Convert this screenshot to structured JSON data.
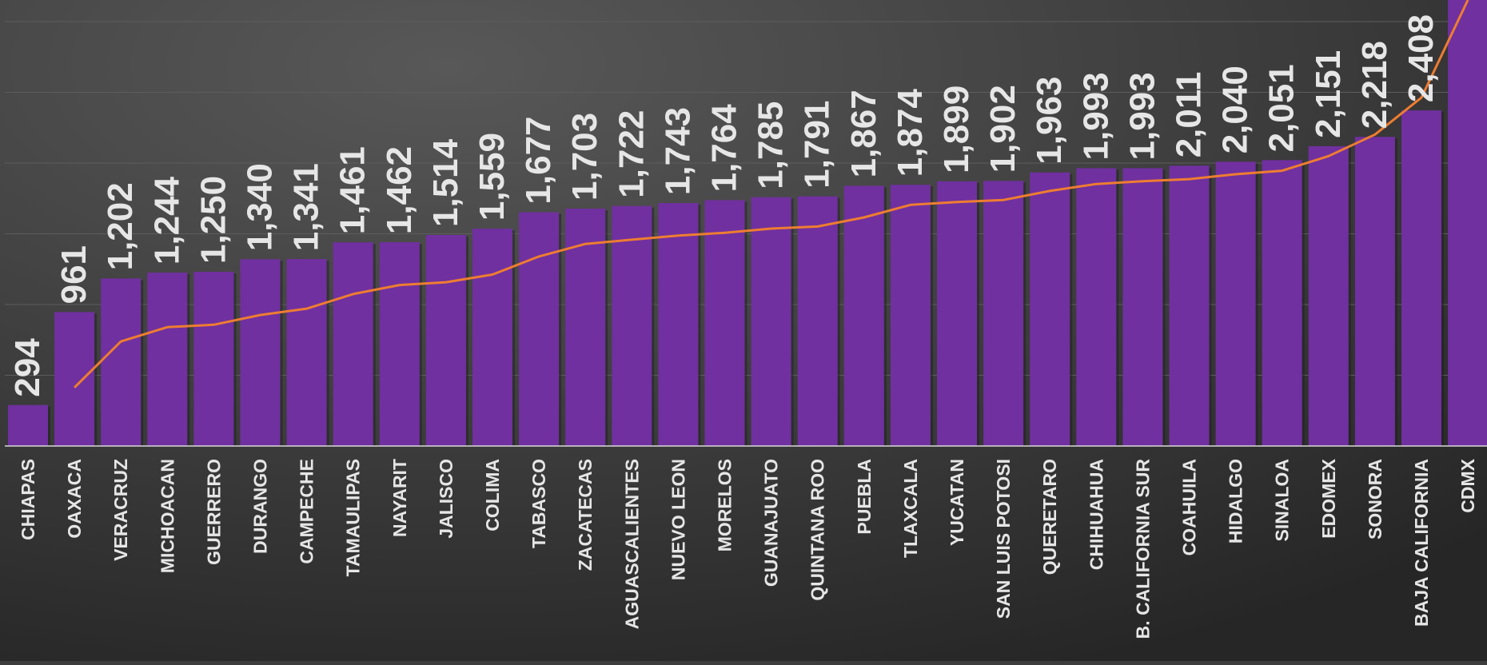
{
  "chart_data": {
    "type": "bar",
    "categories": [
      "CHIAPAS",
      "OAXACA",
      "VERACRUZ",
      "MICHOACAN",
      "GUERRERO",
      "DURANGO",
      "CAMPECHE",
      "TAMAULIPAS",
      "NAYARIT",
      "JALISCO",
      "COLIMA",
      "TABASCO",
      "ZACATECAS",
      "AGUASCALIENTES",
      "NUEVO LEON",
      "MORELOS",
      "GUANAJUATO",
      "QUINTANA ROO",
      "PUEBLA",
      "TLAXCALA",
      "YUCATAN",
      "SAN LUIS POTOSI",
      "QUERETARO",
      "CHIHUAHUA",
      "B. CALIFORNIA SUR",
      "COAHUILA",
      "HIDALGO",
      "SINALOA",
      "EDOMEX",
      "SONORA",
      "BAJA CALIFORNIA",
      "CDMX"
    ],
    "values": [
      294,
      961,
      1202,
      1244,
      1250,
      1340,
      1341,
      1461,
      1462,
      1514,
      1559,
      1677,
      1703,
      1722,
      1743,
      1764,
      1785,
      1791,
      1867,
      1874,
      1899,
      1902,
      1963,
      1993,
      1993,
      2011,
      2040,
      2051,
      2151,
      2218,
      2408,
      3200
    ],
    "value_labels": [
      "294",
      "961",
      "1,202",
      "1,244",
      "1,250",
      "1,340",
      "1,341",
      "1,461",
      "1,462",
      "1,514",
      "1,559",
      "1,677",
      "1,703",
      "1,722",
      "1,743",
      "1,764",
      "1,785",
      "1,791",
      "1,867",
      "1,874",
      "1,899",
      "1,902",
      "1,963",
      "1,993",
      "1,993",
      "2,011",
      "2,040",
      "2,051",
      "2,151",
      "2,218",
      "2,408",
      ""
    ],
    "trend_line": {
      "from_category": "OAXACA",
      "values": [
        null,
        420,
        750,
        853,
        870,
        940,
        985,
        1090,
        1155,
        1175,
        1230,
        1360,
        1450,
        1480,
        1510,
        1530,
        1560,
        1575,
        1640,
        1730,
        1750,
        1765,
        1830,
        1880,
        1900,
        1915,
        1950,
        1975,
        2080,
        2235,
        2500,
        3200
      ]
    },
    "ylim": [
      0,
      3200
    ],
    "grid": true,
    "colors": {
      "bar": "#7030a0",
      "trend": "#ed7d31",
      "text": "#e6e6e6",
      "grid": "#5d5d5d",
      "axis": "#d9d9d9",
      "background": "#3d3d3d"
    }
  }
}
